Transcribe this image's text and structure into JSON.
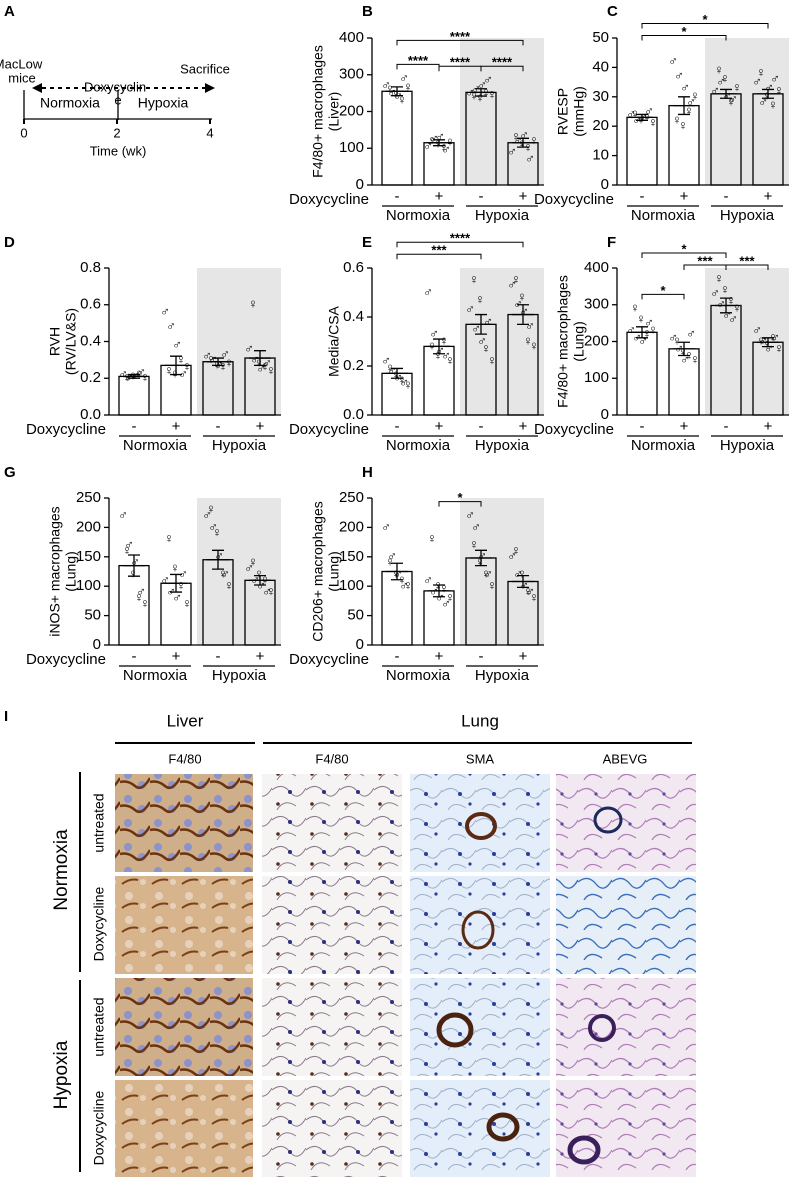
{
  "panel_a": {
    "letter": "A",
    "subject": [
      "MacLow",
      "mice"
    ],
    "drug_label": [
      "Doxycyclin",
      "e"
    ],
    "end_label": "Sacrifice",
    "phases": [
      "Normoxia",
      "Hypoxia"
    ],
    "ticks": [
      0,
      2,
      4
    ],
    "xlim": [
      0,
      4
    ],
    "xlabel": "Time (wk)"
  },
  "chart_data": [
    {
      "type": "bar",
      "panel": "B",
      "ylabel": [
        "F4/80+ macrophages",
        "(Liver)"
      ],
      "treatment_label": "Doxycycline",
      "categories": [
        "-",
        "+",
        "-",
        "+"
      ],
      "groups": [
        "Normoxia",
        "Hypoxia"
      ],
      "shaded_group": 1,
      "values": [
        255,
        115,
        252,
        115
      ],
      "errors": [
        12,
        8,
        10,
        12
      ],
      "male": [
        [
          270,
          250,
          240,
          290
        ],
        [
          105,
          125,
          130,
          95
        ],
        [
          250,
          260,
          270,
          285
        ],
        [
          90,
          120,
          135,
          70
        ]
      ],
      "female": [
        [
          260,
          245,
          230,
          265
        ],
        [
          120,
          110,
          100,
          115
        ],
        [
          240,
          235,
          250,
          245
        ],
        [
          130,
          110,
          100,
          120
        ]
      ],
      "ylim": [
        0,
        400
      ],
      "yticks": [
        0,
        100,
        200,
        300,
        400
      ],
      "significance": [
        {
          "from": 0,
          "to": 1,
          "label": "****"
        },
        {
          "from": 1,
          "to": 2,
          "label": "****"
        },
        {
          "from": 2,
          "to": 3,
          "label": "****"
        },
        {
          "from": 0,
          "to": 3,
          "label": "****"
        }
      ]
    },
    {
      "type": "bar",
      "panel": "C",
      "ylabel": [
        "RVESP",
        "(mmHg)"
      ],
      "treatment_label": "Doxycycline",
      "categories": [
        "-",
        "+",
        "-",
        "+"
      ],
      "groups": [
        "Normoxia",
        "Hypoxia"
      ],
      "shaded_group": 1,
      "values": [
        23,
        27,
        31,
        31
      ],
      "errors": [
        1,
        3,
        1.5,
        1.5
      ],
      "male": [
        [
          24,
          22,
          23,
          25
        ],
        [
          42,
          37,
          33,
          28
        ],
        [
          32,
          35,
          30,
          29
        ],
        [
          35,
          28,
          33,
          36
        ]
      ],
      "female": [
        [
          24,
          22,
          23,
          21
        ],
        [
          22,
          20,
          25,
          30
        ],
        [
          39,
          36,
          28,
          33
        ],
        [
          38,
          30,
          27,
          32
        ]
      ],
      "ylim": [
        0,
        50
      ],
      "yticks": [
        0,
        10,
        20,
        30,
        40,
        50
      ],
      "significance": [
        {
          "from": 0,
          "to": 2,
          "label": "*"
        },
        {
          "from": 0,
          "to": 3,
          "label": "*"
        }
      ]
    },
    {
      "type": "bar",
      "panel": "D",
      "ylabel": [
        "RVH",
        "(RV/LV&S)"
      ],
      "treatment_label": "Doxycycline",
      "categories": [
        "-",
        "+",
        "-",
        "+"
      ],
      "groups": [
        "Normoxia",
        "Hypoxia"
      ],
      "shaded_group": 1,
      "values": [
        0.21,
        0.27,
        0.29,
        0.31
      ],
      "errors": [
        0.01,
        0.05,
        0.02,
        0.04
      ],
      "male": [
        [
          0.22,
          0.2,
          0.21,
          0.23
        ],
        [
          0.56,
          0.48,
          0.38,
          0.22
        ],
        [
          0.32,
          0.3,
          0.27,
          0.33
        ],
        [
          0.36,
          0.3,
          0.25,
          0.28
        ]
      ],
      "female": [
        [
          0.2,
          0.21,
          0.22,
          0.2
        ],
        [
          0.24,
          0.22,
          0.3,
          0.26
        ],
        [
          0.3,
          0.27,
          0.26,
          0.28
        ],
        [
          0.6,
          0.28,
          0.26,
          0.24
        ]
      ],
      "ylim": [
        0,
        0.8
      ],
      "yticks": [
        {
          "value": 0,
          "label": "0.0"
        },
        0.2,
        0.4,
        0.6,
        0.8
      ],
      "significance": []
    },
    {
      "type": "bar",
      "panel": "E",
      "ylabel": [
        "Media/CSA"
      ],
      "treatment_label": "Doxycycline",
      "categories": [
        "-",
        "+",
        "-",
        "+"
      ],
      "groups": [
        "Normoxia",
        "Hypoxia"
      ],
      "shaded_group": 1,
      "values": [
        0.17,
        0.28,
        0.37,
        0.41
      ],
      "errors": [
        0.02,
        0.03,
        0.04,
        0.04
      ],
      "male": [
        [
          0.22,
          0.18,
          0.15,
          0.13
        ],
        [
          0.5,
          0.33,
          0.26,
          0.24
        ],
        [
          0.43,
          0.35,
          0.3,
          0.38
        ],
        [
          0.53,
          0.45,
          0.42,
          0.36
        ]
      ],
      "female": [
        [
          0.19,
          0.16,
          0.14,
          0.12
        ],
        [
          0.28,
          0.24,
          0.3,
          0.22
        ],
        [
          0.55,
          0.47,
          0.27,
          0.22
        ],
        [
          0.55,
          0.48,
          0.3,
          0.28
        ]
      ],
      "ylim": [
        0,
        0.6
      ],
      "yticks": [
        {
          "value": 0,
          "label": "0.0"
        },
        0.2,
        0.4,
        0.6
      ],
      "significance": [
        {
          "from": 0,
          "to": 2,
          "label": "***"
        },
        {
          "from": 0,
          "to": 3,
          "label": "****"
        }
      ]
    },
    {
      "type": "bar",
      "panel": "F",
      "ylabel": [
        "F4/80+ macrophages",
        "(Lung)"
      ],
      "treatment_label": "Doxycycline",
      "categories": [
        "-",
        "+",
        "-",
        "+"
      ],
      "groups": [
        "Normoxia",
        "Hypoxia"
      ],
      "shaded_group": 1,
      "values": [
        225,
        180,
        298,
        198
      ],
      "errors": [
        15,
        18,
        20,
        12
      ],
      "male": [
        [
          230,
          210,
          200,
          250
        ],
        [
          210,
          180,
          150,
          220
        ],
        [
          330,
          300,
          270,
          260
        ],
        [
          230,
          200,
          180,
          210
        ]
      ],
      "female": [
        [
          290,
          260,
          220,
          230
        ],
        [
          200,
          170,
          160,
          150
        ],
        [
          370,
          340,
          310,
          290
        ],
        [
          200,
          190,
          210,
          180
        ]
      ],
      "ylim": [
        0,
        400
      ],
      "yticks": [
        0,
        100,
        200,
        300,
        400
      ],
      "significance": [
        {
          "from": 0,
          "to": 1,
          "label": "*"
        },
        {
          "from": 2,
          "to": 3,
          "label": "***"
        },
        {
          "from": 1,
          "to": 2,
          "label": "***"
        },
        {
          "from": 0,
          "to": 2,
          "label": "*"
        }
      ]
    },
    {
      "type": "bar",
      "panel": "G",
      "ylabel": [
        "iNOS+ macrophages",
        "(Lung)"
      ],
      "treatment_label": "Doxycycline",
      "categories": [
        "-",
        "+",
        "-",
        "+"
      ],
      "groups": [
        "Normoxia",
        "Hypoxia"
      ],
      "shaded_group": 1,
      "values": [
        135,
        105,
        145,
        110
      ],
      "errors": [
        18,
        15,
        16,
        8
      ],
      "male": [
        [
          220,
          170,
          140,
          90
        ],
        [
          110,
          90,
          80,
          120
        ],
        [
          220,
          200,
          150,
          120
        ],
        [
          130,
          110,
          100,
          90
        ]
      ],
      "female": [
        [
          160,
          120,
          80,
          70
        ],
        [
          180,
          130,
          100,
          70
        ],
        [
          230,
          190,
          120,
          100
        ],
        [
          140,
          120,
          110,
          90
        ]
      ],
      "ylim": [
        0,
        250
      ],
      "yticks": [
        0,
        50,
        100,
        150,
        200,
        250
      ],
      "significance": []
    },
    {
      "type": "bar",
      "panel": "H",
      "ylabel": [
        "CD206+ macrophages",
        "(Lung)"
      ],
      "treatment_label": "Doxycycline",
      "categories": [
        "-",
        "+",
        "-",
        "+"
      ],
      "groups": [
        "Normoxia",
        "Hypoxia"
      ],
      "shaded_group": 1,
      "values": [
        125,
        92,
        148,
        108
      ],
      "errors": [
        14,
        10,
        13,
        10
      ],
      "male": [
        [
          200,
          150,
          120,
          100
        ],
        [
          110,
          90,
          80,
          70
        ],
        [
          220,
          200,
          150,
          120
        ],
        [
          150,
          120,
          100,
          90
        ]
      ],
      "female": [
        [
          140,
          120,
          110,
          100
        ],
        [
          180,
          100,
          95,
          80
        ],
        [
          170,
          140,
          120,
          100
        ],
        [
          160,
          120,
          90,
          80
        ]
      ],
      "ylim": [
        0,
        250
      ],
      "yticks": [
        0,
        50,
        100,
        150,
        200,
        250
      ],
      "significance": [
        {
          "from": 1,
          "to": 2,
          "label": "*"
        }
      ]
    }
  ],
  "symbols": {
    "male": "♂",
    "female": "♀",
    "male_color": "#1f3fc4",
    "female_color": "#e03030",
    "shade_color": "#e6e6e6"
  },
  "panel_i": {
    "letter": "I",
    "tissues": [
      "Liver",
      "Lung"
    ],
    "stains": [
      "F4/80",
      "F4/80",
      "SMA",
      "ABEVG"
    ],
    "conditions": [
      "Normoxia",
      "Hypoxia"
    ],
    "treatments": [
      "untreated",
      "Doxycycline",
      "untreated",
      "Doxycycline"
    ]
  }
}
